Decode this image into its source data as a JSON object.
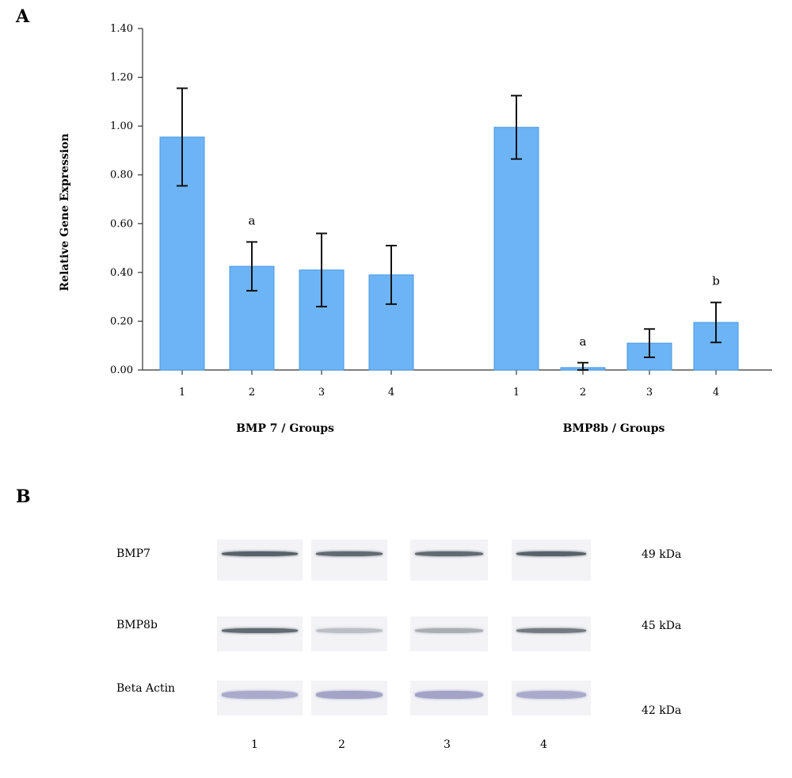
{
  "panels": {
    "a_label": "A",
    "b_label": "B"
  },
  "chart_data": {
    "type": "bar",
    "ylabel": "Relative Gene Expression",
    "ylim": [
      0,
      1.4
    ],
    "yticks": [
      "0.00",
      "0.20",
      "0.40",
      "0.60",
      "0.80",
      "1.00",
      "1.20",
      "1.40"
    ],
    "bar_color": "#6cb4f5",
    "grid": false,
    "groups": [
      {
        "title": "BMP 7 / Groups",
        "categories": [
          "1",
          "2",
          "3",
          "4"
        ],
        "values": [
          0.955,
          0.425,
          0.41,
          0.39
        ],
        "errors": [
          0.2,
          0.1,
          0.15,
          0.12
        ],
        "annotations": [
          "",
          "a",
          "",
          ""
        ]
      },
      {
        "title": "BMP8b / Groups",
        "categories": [
          "1",
          "2",
          "3",
          "4"
        ],
        "values": [
          0.995,
          0.01,
          0.11,
          0.195
        ],
        "errors": [
          0.13,
          0.02,
          0.058,
          0.082
        ],
        "annotations": [
          "",
          "a",
          "",
          "b"
        ]
      }
    ]
  },
  "blot": {
    "rows": [
      {
        "label": "BMP7",
        "kda": "49 kDa"
      },
      {
        "label": "BMP8b",
        "kda": "45 kDa"
      },
      {
        "label": "Beta Actin",
        "kda": "42 kDa"
      }
    ],
    "lanes": [
      "1",
      "2",
      "3",
      "4"
    ],
    "intensities": [
      [
        0.85,
        0.8,
        0.8,
        0.85
      ],
      [
        0.8,
        0.3,
        0.4,
        0.7
      ],
      [
        0.55,
        0.6,
        0.6,
        0.55
      ]
    ]
  }
}
